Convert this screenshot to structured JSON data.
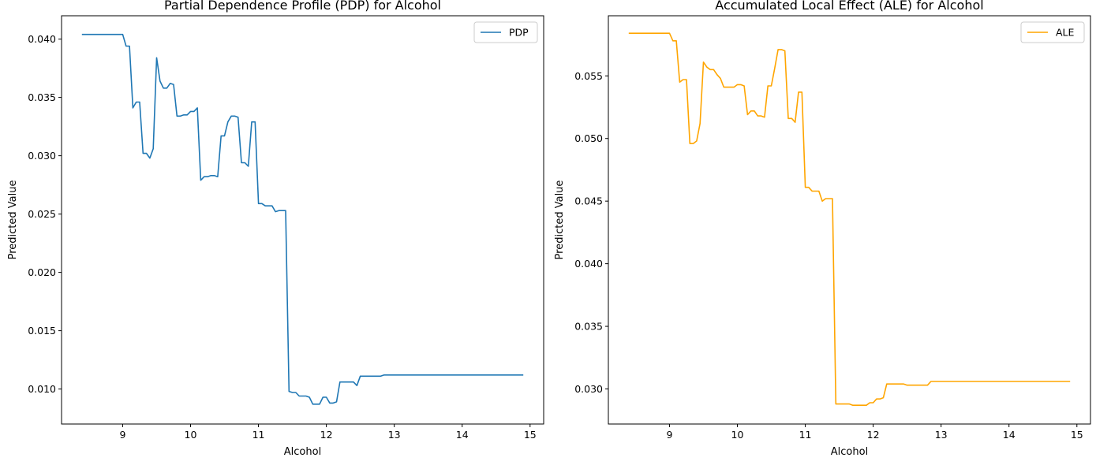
{
  "chart_data": [
    {
      "type": "line",
      "title": "Partial Dependence Profile (PDP) for Alcohol",
      "xlabel": "Alcohol",
      "ylabel": "Predicted Value",
      "xlim": [
        8.1,
        15.2
      ],
      "ylim": [
        0.007,
        0.042
      ],
      "xticks": [
        9,
        10,
        11,
        12,
        13,
        14,
        15
      ],
      "xtick_labels": [
        "9",
        "10",
        "11",
        "12",
        "13",
        "14",
        "15"
      ],
      "yticks": [
        0.01,
        0.015,
        0.02,
        0.025,
        0.03,
        0.035,
        0.04
      ],
      "ytick_labels": [
        "0.010",
        "0.015",
        "0.020",
        "0.025",
        "0.030",
        "0.035",
        "0.040"
      ],
      "grid": false,
      "legend_position": "top-right",
      "series": [
        {
          "name": "PDP",
          "color": "#1f77b4",
          "x": [
            8.4,
            8.5,
            8.6,
            8.7,
            8.8,
            8.9,
            9.0,
            9.05,
            9.1,
            9.15,
            9.2,
            9.25,
            9.3,
            9.35,
            9.4,
            9.45,
            9.5,
            9.55,
            9.6,
            9.65,
            9.7,
            9.75,
            9.8,
            9.85,
            9.9,
            9.95,
            10.0,
            10.05,
            10.1,
            10.15,
            10.2,
            10.25,
            10.3,
            10.35,
            10.4,
            10.45,
            10.5,
            10.55,
            10.6,
            10.65,
            10.7,
            10.75,
            10.8,
            10.85,
            10.9,
            10.95,
            11.0,
            11.05,
            11.1,
            11.15,
            11.2,
            11.25,
            11.3,
            11.35,
            11.4,
            11.45,
            11.5,
            11.55,
            11.6,
            11.65,
            11.7,
            11.75,
            11.8,
            11.85,
            11.9,
            11.95,
            12.0,
            12.05,
            12.1,
            12.15,
            12.2,
            12.25,
            12.3,
            12.35,
            12.4,
            12.45,
            12.5,
            12.55,
            12.6,
            12.65,
            12.7,
            12.75,
            12.8,
            12.85,
            12.9,
            12.95,
            13.0,
            13.05,
            13.1,
            13.15,
            13.2,
            13.25,
            13.3,
            13.35,
            13.4,
            13.45,
            13.5,
            13.6,
            13.7,
            13.8,
            13.9,
            14.0,
            14.2,
            14.4,
            14.6,
            14.8,
            14.9
          ],
          "values": [
            0.0404,
            0.0404,
            0.0404,
            0.0404,
            0.0404,
            0.0404,
            0.0404,
            0.0394,
            0.0394,
            0.0341,
            0.0346,
            0.0346,
            0.0302,
            0.0302,
            0.0298,
            0.0306,
            0.0384,
            0.0364,
            0.0358,
            0.0358,
            0.0362,
            0.0361,
            0.0334,
            0.0334,
            0.0335,
            0.0335,
            0.0338,
            0.0338,
            0.0341,
            0.0279,
            0.0282,
            0.0282,
            0.0283,
            0.0283,
            0.0282,
            0.0317,
            0.0317,
            0.0329,
            0.0334,
            0.0334,
            0.0333,
            0.0294,
            0.0294,
            0.0291,
            0.0329,
            0.0329,
            0.0259,
            0.0259,
            0.0257,
            0.0257,
            0.0257,
            0.0252,
            0.0253,
            0.0253,
            0.0253,
            0.0098,
            0.0097,
            0.0097,
            0.0094,
            0.0094,
            0.0094,
            0.0093,
            0.0087,
            0.0087,
            0.0087,
            0.0093,
            0.0093,
            0.0088,
            0.0088,
            0.0089,
            0.0106,
            0.0106,
            0.0106,
            0.0106,
            0.0106,
            0.0103,
            0.0111,
            0.0111,
            0.0111,
            0.0111,
            0.0111,
            0.0111,
            0.0111,
            0.0112,
            0.0112,
            0.0112,
            0.0112,
            0.0112,
            0.0112,
            0.0112,
            0.0112,
            0.0112,
            0.0112,
            0.0112,
            0.0112,
            0.0112,
            0.0112,
            0.0112,
            0.0112,
            0.0112,
            0.0112,
            0.0112,
            0.0112,
            0.0112,
            0.0112,
            0.0112,
            0.0112
          ]
        }
      ]
    },
    {
      "type": "line",
      "title": "Accumulated Local Effect (ALE) for Alcohol",
      "xlabel": "Alcohol",
      "ylabel": "Predicted Value",
      "xlim": [
        8.1,
        15.2
      ],
      "ylim": [
        0.0272,
        0.0598
      ],
      "xticks": [
        9,
        10,
        11,
        12,
        13,
        14,
        15
      ],
      "xtick_labels": [
        "9",
        "10",
        "11",
        "12",
        "13",
        "14",
        "15"
      ],
      "yticks": [
        0.03,
        0.035,
        0.04,
        0.045,
        0.05,
        0.055
      ],
      "ytick_labels": [
        "0.030",
        "0.035",
        "0.040",
        "0.045",
        "0.050",
        "0.055"
      ],
      "grid": false,
      "legend_position": "top-right",
      "series": [
        {
          "name": "ALE",
          "color": "#ffa500",
          "x": [
            8.4,
            8.5,
            8.6,
            8.7,
            8.8,
            8.9,
            9.0,
            9.05,
            9.1,
            9.15,
            9.2,
            9.25,
            9.3,
            9.35,
            9.4,
            9.45,
            9.5,
            9.55,
            9.6,
            9.65,
            9.7,
            9.75,
            9.8,
            9.85,
            9.9,
            9.95,
            10.0,
            10.05,
            10.1,
            10.15,
            10.2,
            10.25,
            10.3,
            10.35,
            10.4,
            10.45,
            10.5,
            10.55,
            10.6,
            10.65,
            10.7,
            10.75,
            10.8,
            10.85,
            10.9,
            10.95,
            11.0,
            11.05,
            11.1,
            11.15,
            11.2,
            11.25,
            11.3,
            11.35,
            11.4,
            11.45,
            11.5,
            11.55,
            11.6,
            11.65,
            11.7,
            11.75,
            11.8,
            11.85,
            11.9,
            11.95,
            12.0,
            12.05,
            12.1,
            12.15,
            12.2,
            12.25,
            12.3,
            12.35,
            12.4,
            12.45,
            12.5,
            12.55,
            12.6,
            12.65,
            12.7,
            12.75,
            12.8,
            12.85,
            12.9,
            12.95,
            13.0,
            13.05,
            13.1,
            13.15,
            13.2,
            13.25,
            13.3,
            13.35,
            13.4,
            13.45,
            13.5,
            13.6,
            13.7,
            13.8,
            13.9,
            14.0,
            14.2,
            14.4,
            14.6,
            14.8,
            14.9
          ],
          "values": [
            0.0584,
            0.0584,
            0.0584,
            0.0584,
            0.0584,
            0.0584,
            0.0584,
            0.0578,
            0.0578,
            0.0545,
            0.0547,
            0.0547,
            0.0496,
            0.0496,
            0.0498,
            0.0512,
            0.0561,
            0.0557,
            0.0555,
            0.0555,
            0.0551,
            0.0548,
            0.0541,
            0.0541,
            0.0541,
            0.0541,
            0.0543,
            0.0543,
            0.0542,
            0.0519,
            0.0522,
            0.0522,
            0.0518,
            0.0518,
            0.0517,
            0.0542,
            0.0542,
            0.0556,
            0.0571,
            0.0571,
            0.057,
            0.0516,
            0.0516,
            0.0513,
            0.0537,
            0.0537,
            0.0461,
            0.0461,
            0.0458,
            0.0458,
            0.0458,
            0.045,
            0.0452,
            0.0452,
            0.0452,
            0.0288,
            0.0288,
            0.0288,
            0.0288,
            0.0288,
            0.0287,
            0.0287,
            0.0287,
            0.0287,
            0.0287,
            0.0289,
            0.0289,
            0.0292,
            0.0292,
            0.0293,
            0.0304,
            0.0304,
            0.0304,
            0.0304,
            0.0304,
            0.0304,
            0.0303,
            0.0303,
            0.0303,
            0.0303,
            0.0303,
            0.0303,
            0.0303,
            0.0306,
            0.0306,
            0.0306,
            0.0306,
            0.0306,
            0.0306,
            0.0306,
            0.0306,
            0.0306,
            0.0306,
            0.0306,
            0.0306,
            0.0306,
            0.0306,
            0.0306,
            0.0306,
            0.0306,
            0.0306,
            0.0306,
            0.0306,
            0.0306,
            0.0306,
            0.0306,
            0.0306
          ]
        }
      ]
    }
  ]
}
